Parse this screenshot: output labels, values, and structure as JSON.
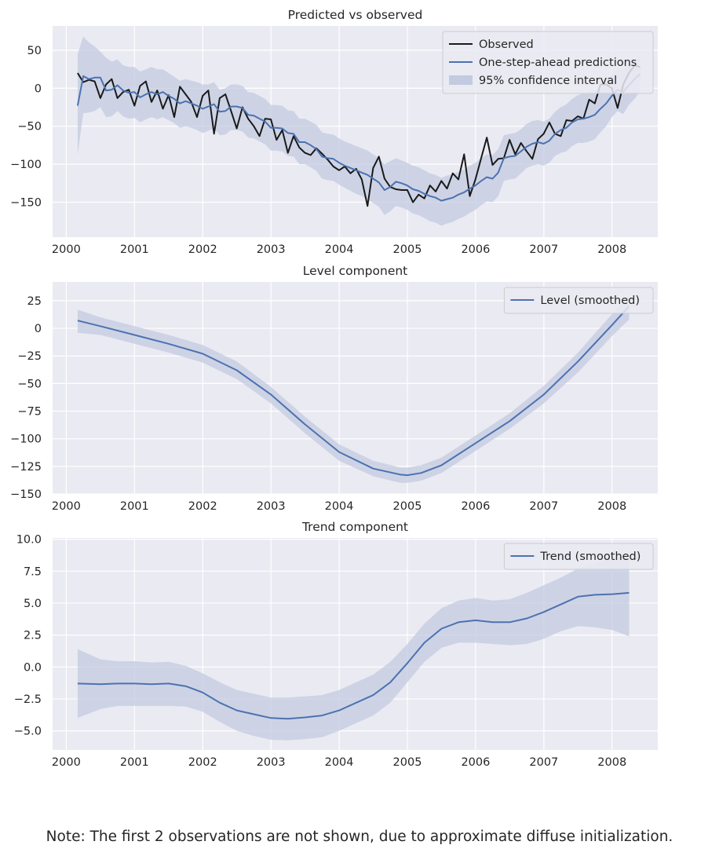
{
  "note": "Note: The first 2 observations are not shown, due to approximate diffuse initialization.",
  "colors": {
    "background": "#eaeaf2",
    "grid": "#ffffff",
    "observed": "#1a1a1a",
    "prediction": "#4c72b0",
    "band": "#c3cbe0",
    "legend_bg": "#eaeaf2",
    "legend_border": "#cccccc"
  },
  "chart_data": [
    {
      "type": "line",
      "title": "Predicted vs observed",
      "xlabel": "",
      "ylabel": "",
      "xlim": [
        1999.8,
        2008.67
      ],
      "ylim": [
        -196,
        82
      ],
      "x_ticks": [
        2000,
        2001,
        2002,
        2003,
        2004,
        2005,
        2006,
        2007,
        2008
      ],
      "y_ticks": [
        50,
        0,
        -50,
        -100,
        -150
      ],
      "y_tick_labels": [
        "50",
        "0",
        "−50",
        "−100",
        "−150"
      ],
      "grid": true,
      "legend_position": "top-right",
      "legend": [
        "Observed",
        "One-step-ahead predictions",
        "95% confidence interval"
      ],
      "x_start": 2000.167,
      "x_step": 0.0833,
      "series": [
        {
          "name": "Observed",
          "values": [
            20,
            8,
            11,
            9,
            -13,
            5,
            12,
            -13,
            -5,
            -2,
            -23,
            3,
            9,
            -18,
            -3,
            -27,
            -9,
            -38,
            2,
            -8,
            -18,
            -38,
            -10,
            -3,
            -60,
            -13,
            -8,
            -30,
            -53,
            -25,
            -40,
            -50,
            -63,
            -40,
            -41,
            -68,
            -55,
            -85,
            -63,
            -78,
            -85,
            -88,
            -79,
            -86,
            -94,
            -103,
            -108,
            -103,
            -112,
            -106,
            -120,
            -155,
            -105,
            -90,
            -119,
            -130,
            -133,
            -134,
            -134,
            -150,
            -140,
            -145,
            -128,
            -136,
            -122,
            -132,
            -112,
            -120,
            -87,
            -142,
            -120,
            -92,
            -65,
            -101,
            -93,
            -92,
            -68,
            -87,
            -72,
            -83,
            -93,
            -67,
            -60,
            -45,
            -60,
            -63,
            -42,
            -43,
            -37,
            -40,
            -15,
            -20,
            5,
            5,
            0,
            -26,
            5,
            20,
            30,
            28
          ]
        },
        {
          "name": "One-step-ahead predictions",
          "values": [
            -23,
            16,
            12,
            14,
            14,
            -3,
            -2,
            4,
            -3,
            -6,
            -5,
            -12,
            -8,
            -5,
            -8,
            -5,
            -10,
            -14,
            -20,
            -17,
            -20,
            -23,
            -27,
            -24,
            -21,
            -31,
            -30,
            -24,
            -24,
            -26,
            -35,
            -36,
            -40,
            -44,
            -52,
            -52,
            -53,
            -59,
            -60,
            -71,
            -71,
            -75,
            -80,
            -90,
            -92,
            -93,
            -98,
            -102,
            -105,
            -108,
            -111,
            -114,
            -119,
            -124,
            -134,
            -130,
            -123,
            -125,
            -128,
            -133,
            -135,
            -139,
            -142,
            -144,
            -148,
            -146,
            -144,
            -140,
            -137,
            -132,
            -128,
            -122,
            -117,
            -119,
            -111,
            -92,
            -90,
            -89,
            -83,
            -77,
            -73,
            -71,
            -73,
            -69,
            -60,
            -55,
            -52,
            -45,
            -41,
            -40,
            -38,
            -35,
            -27,
            -20,
            -10,
            -2,
            -5,
            4,
            12,
            19
          ]
        }
      ],
      "confidence_interval": {
        "upper": [
          45,
          68,
          60,
          55,
          48,
          40,
          35,
          38,
          30,
          28,
          28,
          22,
          25,
          28,
          25,
          25,
          20,
          15,
          10,
          12,
          10,
          8,
          5,
          5,
          8,
          -2,
          0,
          5,
          5,
          3,
          -5,
          -6,
          -10,
          -14,
          -22,
          -22,
          -23,
          -29,
          -30,
          -40,
          -40,
          -44,
          -48,
          -58,
          -60,
          -61,
          -66,
          -70,
          -73,
          -76,
          -79,
          -82,
          -87,
          -92,
          -100,
          -96,
          -92,
          -95,
          -98,
          -102,
          -104,
          -108,
          -112,
          -114,
          -118,
          -115,
          -113,
          -110,
          -107,
          -102,
          -98,
          -92,
          -87,
          -88,
          -80,
          -62,
          -60,
          -59,
          -54,
          -47,
          -43,
          -42,
          -44,
          -40,
          -31,
          -25,
          -21,
          -14,
          -9,
          -7,
          -5,
          -3,
          4,
          10,
          18,
          26,
          24,
          30,
          36,
          42
        ],
        "lower": [
          -88,
          -33,
          -32,
          -30,
          -25,
          -38,
          -37,
          -30,
          -37,
          -40,
          -39,
          -45,
          -41,
          -38,
          -41,
          -38,
          -42,
          -46,
          -52,
          -50,
          -52,
          -55,
          -59,
          -56,
          -53,
          -62,
          -61,
          -55,
          -55,
          -57,
          -65,
          -66,
          -70,
          -74,
          -82,
          -82,
          -83,
          -89,
          -90,
          -100,
          -100,
          -104,
          -109,
          -119,
          -121,
          -122,
          -127,
          -131,
          -135,
          -139,
          -142,
          -146,
          -151,
          -156,
          -167,
          -162,
          -155,
          -157,
          -160,
          -165,
          -167,
          -171,
          -175,
          -177,
          -181,
          -178,
          -176,
          -172,
          -169,
          -164,
          -160,
          -154,
          -149,
          -150,
          -142,
          -122,
          -120,
          -119,
          -112,
          -105,
          -102,
          -100,
          -102,
          -98,
          -89,
          -85,
          -83,
          -76,
          -72,
          -72,
          -70,
          -67,
          -58,
          -50,
          -38,
          -30,
          -34,
          -22,
          -14,
          -4
        ]
      }
    },
    {
      "type": "line",
      "title": "Level component",
      "xlabel": "",
      "ylabel": "",
      "xlim": [
        1999.8,
        2008.67
      ],
      "ylim": [
        -150,
        42
      ],
      "x_ticks": [
        2000,
        2001,
        2002,
        2003,
        2004,
        2005,
        2006,
        2007,
        2008
      ],
      "y_ticks": [
        25,
        0,
        -25,
        -50,
        -75,
        -100,
        -125,
        -150
      ],
      "y_tick_labels": [
        "25",
        "0",
        "−25",
        "−50",
        "−75",
        "−100",
        "−125",
        "−150"
      ],
      "grid": true,
      "legend_position": "top-right",
      "legend": [
        "Level (smoothed)"
      ],
      "series": [
        {
          "name": "Level (smoothed)",
          "x": [
            2000.167,
            2000.5,
            2001.0,
            2001.5,
            2002.0,
            2002.5,
            2003.0,
            2003.5,
            2004.0,
            2004.5,
            2004.9,
            2005.0,
            2005.2,
            2005.5,
            2006.0,
            2006.5,
            2007.0,
            2007.5,
            2008.0,
            2008.25
          ],
          "values": [
            7,
            2,
            -6,
            -14,
            -23,
            -38,
            -60,
            -87,
            -112,
            -127,
            -132.5,
            -133,
            -131,
            -124,
            -104,
            -84,
            -60,
            -30,
            3,
            20
          ],
          "upper": [
            17,
            10,
            2,
            -6,
            -15,
            -30,
            -53,
            -80,
            -105,
            -120,
            -126,
            -126,
            -124,
            -117,
            -97,
            -77,
            -52,
            -22,
            13,
            30
          ],
          "lower": [
            -4,
            -6,
            -14,
            -22,
            -31,
            -46,
            -68,
            -95,
            -120,
            -134,
            -140,
            -140,
            -138,
            -131,
            -111,
            -91,
            -68,
            -40,
            -7,
            8
          ]
        }
      ]
    },
    {
      "type": "line",
      "title": "Trend component",
      "xlabel": "",
      "ylabel": "",
      "xlim": [
        1999.8,
        2008.67
      ],
      "ylim": [
        -6.5,
        10.1
      ],
      "x_ticks": [
        2000,
        2001,
        2002,
        2003,
        2004,
        2005,
        2006,
        2007,
        2008
      ],
      "y_ticks": [
        10.0,
        7.5,
        5.0,
        2.5,
        0.0,
        -2.5,
        -5.0
      ],
      "y_tick_labels": [
        "10.0",
        "7.5",
        "5.0",
        "2.5",
        "0.0",
        "−2.5",
        "−5.0"
      ],
      "grid": true,
      "legend_position": "top-right",
      "legend": [
        "Trend (smoothed)"
      ],
      "series": [
        {
          "name": "Trend (smoothed)",
          "x": [
            2000.167,
            2000.5,
            2000.75,
            2001.0,
            2001.25,
            2001.5,
            2001.75,
            2002.0,
            2002.25,
            2002.5,
            2002.75,
            2003.0,
            2003.25,
            2003.5,
            2003.75,
            2004.0,
            2004.25,
            2004.5,
            2004.75,
            2005.0,
            2005.25,
            2005.5,
            2005.75,
            2006.0,
            2006.25,
            2006.5,
            2006.75,
            2007.0,
            2007.25,
            2007.5,
            2007.75,
            2008.0,
            2008.25
          ],
          "values": [
            -1.3,
            -1.35,
            -1.3,
            -1.3,
            -1.35,
            -1.3,
            -1.5,
            -2.0,
            -2.8,
            -3.4,
            -3.7,
            -4.0,
            -4.05,
            -3.95,
            -3.8,
            -3.4,
            -2.8,
            -2.2,
            -1.2,
            0.3,
            1.9,
            3.0,
            3.5,
            3.65,
            3.5,
            3.5,
            3.8,
            4.3,
            4.9,
            5.5,
            5.65,
            5.7,
            5.8
          ],
          "upper": [
            1.4,
            0.6,
            0.45,
            0.45,
            0.35,
            0.4,
            0.1,
            -0.5,
            -1.2,
            -1.8,
            -2.1,
            -2.4,
            -2.4,
            -2.3,
            -2.2,
            -1.8,
            -1.2,
            -0.6,
            0.4,
            1.8,
            3.4,
            4.6,
            5.2,
            5.4,
            5.2,
            5.3,
            5.8,
            6.4,
            7.0,
            7.7,
            8.1,
            8.5,
            8.8
          ],
          "lower": [
            -4.0,
            -3.3,
            -3.05,
            -3.05,
            -3.05,
            -3.05,
            -3.1,
            -3.5,
            -4.3,
            -5.0,
            -5.4,
            -5.7,
            -5.75,
            -5.65,
            -5.5,
            -5.0,
            -4.4,
            -3.8,
            -2.8,
            -1.2,
            0.4,
            1.5,
            1.9,
            1.9,
            1.8,
            1.7,
            1.8,
            2.2,
            2.8,
            3.2,
            3.1,
            2.9,
            2.4
          ]
        }
      ]
    }
  ]
}
